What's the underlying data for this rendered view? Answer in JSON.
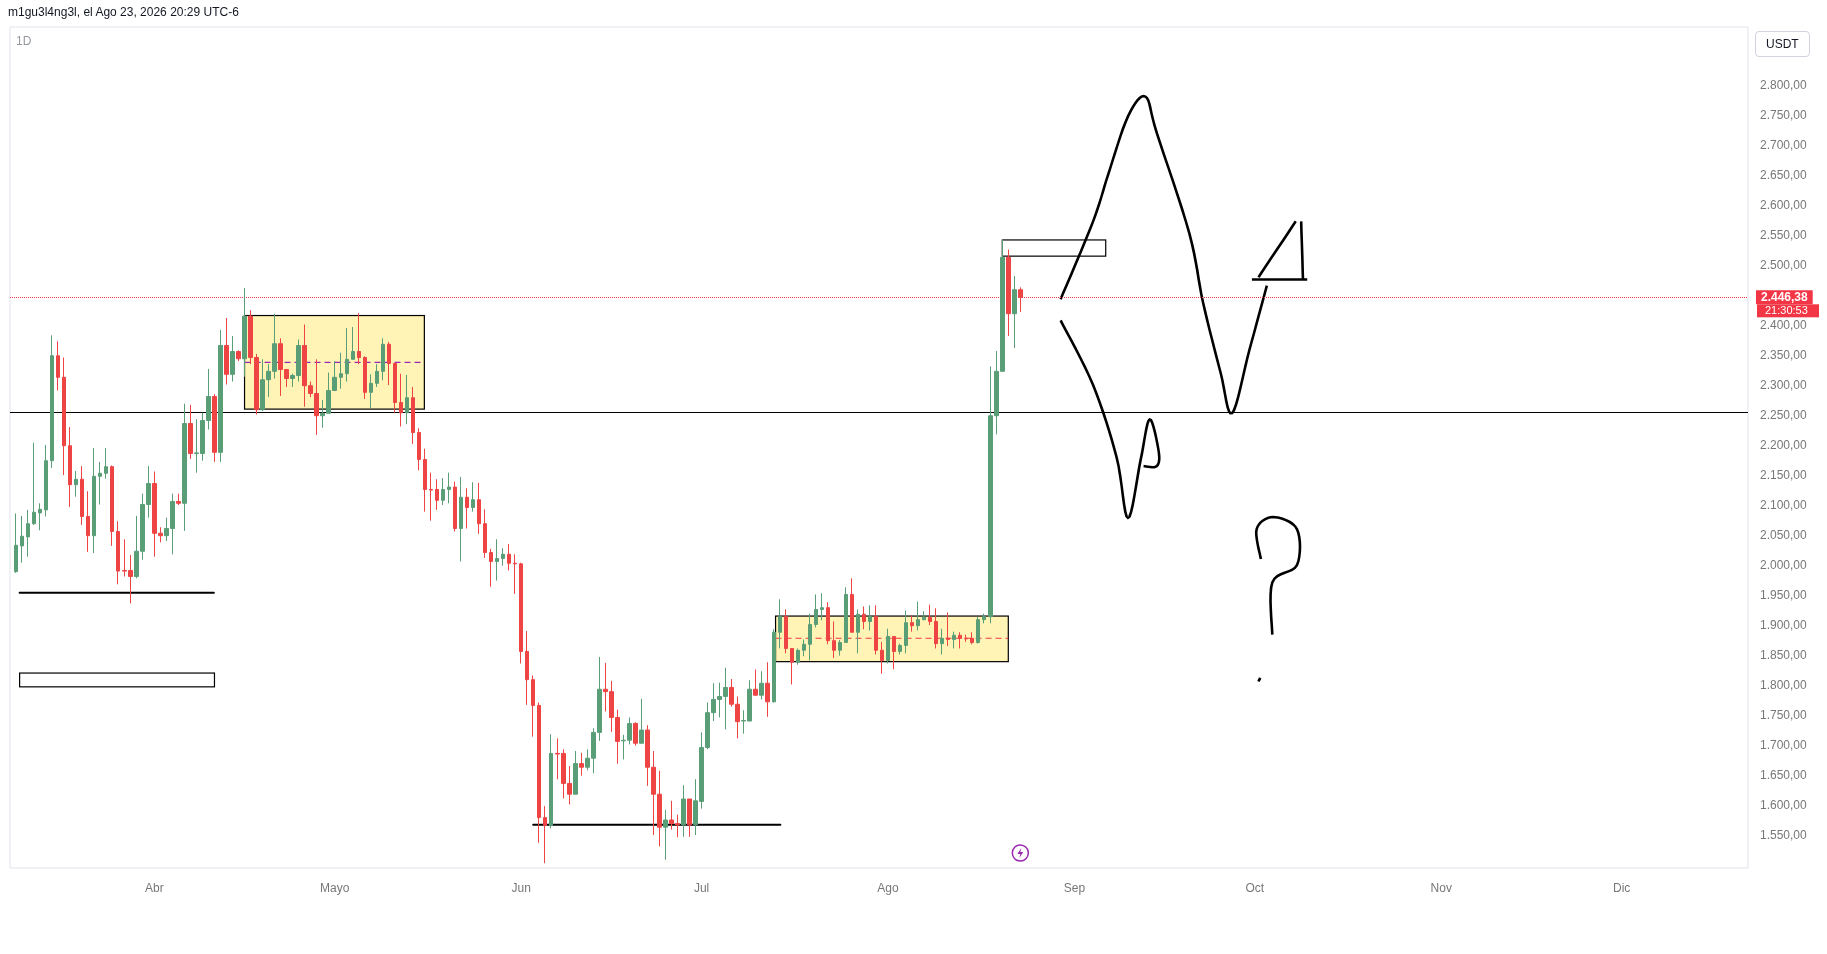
{
  "chart_data": {
    "type": "candlestick",
    "title": "m1gu3l4ng3l, el Ago 23, 2026 20:29 UTC-6",
    "subtitle": "1D",
    "ylabel": "USDT",
    "annotations": [
      "21:30:53"
    ],
    "colors": [
      "#5a9e78",
      "#5a9e78",
      "#5a9e78",
      "#5a9e78",
      "#5a9e78",
      "#5a9e78",
      "#5a9e78",
      "#ef4444",
      "#ef4444",
      "#ef4444",
      "#5a9e78",
      "#ef4444",
      "#ef4444",
      "#5a9e78",
      "#5a9e78",
      "#5a9e78",
      "#ef4444",
      "#ef4444",
      "#ef4444",
      "#ef4444",
      "#5a9e78",
      "#5a9e78",
      "#5a9e78",
      "#ef4444",
      "#ef4444",
      "#5a9e78",
      "#5a9e78",
      "#ef4444",
      "#5a9e78",
      "#ef4444",
      "#5a9e78",
      "#5a9e78",
      "#5a9e78",
      "#ef4444",
      "#5a9e78",
      "#ef4444",
      "#5a9e78",
      "#ef4444",
      "#5a9e78",
      "#ef4444",
      "#ef4444",
      "#5a9e78",
      "#5a9e78",
      "#5a9e78",
      "#ef4444",
      "#ef4444",
      "#5a9e78",
      "#5a9e78",
      "#ef4444",
      "#ef4444",
      "#ef4444",
      "#5a9e78",
      "#5a9e78",
      "#5a9e78",
      "#5a9e78",
      "#5a9e78",
      "#5a9e78",
      "#ef4444",
      "#ef4444",
      "#5a9e78",
      "#5a9e78",
      "#5a9e78",
      "#ef4444",
      "#ef4444",
      "#ef4444",
      "#5a9e78",
      "#ef4444",
      "#ef4444",
      "#ef4444",
      "#ef4444",
      "#ef4444",
      "#5a9e78",
      "#5a9e78",
      "#ef4444",
      "#5a9e78",
      "#ef4444",
      "#5a9e78",
      "#ef4444",
      "#ef4444",
      "#ef4444",
      "#5a9e78",
      "#5a9e78",
      "#ef4444",
      "#ef4444",
      "#ef4444",
      "#ef4444",
      "#ef4444",
      "#ef4444",
      "#ef4444",
      "#5a9e78",
      "#ef4444",
      "#ef4444",
      "#ef4444",
      "#5a9e78",
      "#ef4444",
      "#5a9e78",
      "#5a9e78",
      "#5a9e78",
      "#ef4444",
      "#ef4444",
      "#ef4444",
      "#5a9e78",
      "#5a9e78",
      "#ef4444",
      "#5a9e78",
      "#ef4444",
      "#ef4444",
      "#ef4444",
      "#5a9e78",
      "#ef4444",
      "#ef4444",
      "#5a9e78",
      "#ef4444",
      "#5a9e78",
      "#5a9e78",
      "#5a9e78",
      "#5a9e78",
      "#5a9e78",
      "#5a9e78",
      "#ef4444",
      "#ef4444",
      "#5a9e78",
      "#5a9e78",
      "#ef4444",
      "#5a9e78",
      "#ef4444",
      "#5a9e78",
      "#5a9e78",
      "#ef4444",
      "#ef4444",
      "#5a9e78",
      "#5a9e78",
      "#5a9e78",
      "#5a9e78",
      "#5a9e78",
      "#ef4444",
      "#ef4444",
      "#5a9e78",
      "#5a9e78",
      "#ef4444",
      "#5a9e78",
      "#ef4444",
      "#5a9e78",
      "#ef4444",
      "#ef4444",
      "#5a9e78",
      "#ef4444",
      "#5a9e78",
      "#5a9e78",
      "#ef4444",
      "#5a9e78",
      "#5a9e78",
      "#ef4444",
      "#ef4444",
      "#5a9e78",
      "#ef4444",
      "#5a9e78",
      "#ef4444",
      "#ef4444",
      "#ef4444",
      "#5a9e78",
      "#5a9e78",
      "#5a9e78",
      "#5a9e78",
      "#5a9e78",
      "#ef4444",
      "#5a9e78",
      "#ef4444"
    ],
    "x": [
      "2026-03-09",
      "2026-03-10",
      "2026-03-11",
      "2026-03-12",
      "2026-03-13",
      "2026-03-14",
      "2026-03-15",
      "2026-03-16",
      "2026-03-17",
      "2026-03-18",
      "2026-03-19",
      "2026-03-20",
      "2026-03-21",
      "2026-03-22",
      "2026-03-23",
      "2026-03-24",
      "2026-03-25",
      "2026-03-26",
      "2026-03-27",
      "2026-03-28",
      "2026-03-29",
      "2026-03-30",
      "2026-03-31",
      "2026-04-01",
      "2026-04-02",
      "2026-04-03",
      "2026-04-04",
      "2026-04-05",
      "2026-04-06",
      "2026-04-07",
      "2026-04-08",
      "2026-04-09",
      "2026-04-10",
      "2026-04-11",
      "2026-04-12",
      "2026-04-13",
      "2026-04-14",
      "2026-04-15",
      "2026-04-16",
      "2026-04-17",
      "2026-04-18",
      "2026-04-19",
      "2026-04-20",
      "2026-04-21",
      "2026-04-22",
      "2026-04-23",
      "2026-04-24",
      "2026-04-25",
      "2026-04-26",
      "2026-04-27",
      "2026-04-28",
      "2026-04-29",
      "2026-04-30",
      "2026-05-01",
      "2026-05-02",
      "2026-05-03",
      "2026-05-04",
      "2026-05-05",
      "2026-05-06",
      "2026-05-07",
      "2026-05-08",
      "2026-05-09",
      "2026-05-10",
      "2026-05-11",
      "2026-05-12",
      "2026-05-13",
      "2026-05-14",
      "2026-05-15",
      "2026-05-16",
      "2026-05-17",
      "2026-05-18",
      "2026-05-19",
      "2026-05-20",
      "2026-05-21",
      "2026-05-22",
      "2026-05-23",
      "2026-05-24",
      "2026-05-25",
      "2026-05-26",
      "2026-05-27",
      "2026-05-28",
      "2026-05-29",
      "2026-05-30",
      "2026-05-31",
      "2026-06-01",
      "2026-06-02",
      "2026-06-03",
      "2026-06-04",
      "2026-06-05",
      "2026-06-06",
      "2026-06-07",
      "2026-06-08",
      "2026-06-09",
      "2026-06-10",
      "2026-06-11",
      "2026-06-12",
      "2026-06-13",
      "2026-06-14",
      "2026-06-15",
      "2026-06-16",
      "2026-06-17",
      "2026-06-18",
      "2026-06-19",
      "2026-06-20",
      "2026-06-21",
      "2026-06-22",
      "2026-06-23",
      "2026-06-24",
      "2026-06-25",
      "2026-06-26",
      "2026-06-27",
      "2026-06-28",
      "2026-06-29",
      "2026-06-30",
      "2026-07-01",
      "2026-07-02",
      "2026-07-03",
      "2026-07-04",
      "2026-07-05",
      "2026-07-06",
      "2026-07-07",
      "2026-07-08",
      "2026-07-09",
      "2026-07-10",
      "2026-07-11",
      "2026-07-12",
      "2026-07-13",
      "2026-07-14",
      "2026-07-15",
      "2026-07-16",
      "2026-07-17",
      "2026-07-18",
      "2026-07-19",
      "2026-07-20",
      "2026-07-21",
      "2026-07-22",
      "2026-07-23",
      "2026-07-24",
      "2026-07-25",
      "2026-07-26",
      "2026-07-27",
      "2026-07-28",
      "2026-07-29",
      "2026-07-30",
      "2026-07-31",
      "2026-08-01",
      "2026-08-02",
      "2026-08-03",
      "2026-08-04",
      "2026-08-05",
      "2026-08-06",
      "2026-08-07",
      "2026-08-08",
      "2026-08-09",
      "2026-08-10",
      "2026-08-11",
      "2026-08-12",
      "2026-08-13",
      "2026-08-14",
      "2026-08-15",
      "2026-08-16",
      "2026-08-17",
      "2026-08-18",
      "2026-08-19",
      "2026-08-20",
      "2026-08-21",
      "2026-08-22",
      "2026-08-23"
    ],
    "ohlc": [
      [
        1989,
        2086,
        1987,
        2033
      ],
      [
        2032,
        2082,
        2004,
        2048
      ],
      [
        2047,
        2092,
        2014,
        2069
      ],
      [
        2069,
        2204,
        2067,
        2088
      ],
      [
        2087,
        2103,
        2058,
        2093
      ],
      [
        2092,
        2200,
        2081,
        2174
      ],
      [
        2174,
        2383,
        2162,
        2349
      ],
      [
        2349,
        2373,
        2291,
        2313
      ],
      [
        2313,
        2346,
        2150,
        2199
      ],
      [
        2199,
        2230,
        2097,
        2134
      ],
      [
        2134,
        2157,
        2114,
        2143
      ],
      [
        2143,
        2165,
        2067,
        2081
      ],
      [
        2081,
        2123,
        2022,
        2049
      ],
      [
        2049,
        2195,
        2020,
        2148
      ],
      [
        2148,
        2172,
        2101,
        2153
      ],
      [
        2153,
        2195,
        2144,
        2164
      ],
      [
        2164,
        2166,
        2032,
        2056
      ],
      [
        2056,
        2073,
        1968,
        1990
      ],
      [
        1991,
        2043,
        1981,
        1990
      ],
      [
        1991,
        2017,
        1936,
        1981
      ],
      [
        1981,
        2082,
        1978,
        2023
      ],
      [
        2023,
        2119,
        2009,
        2101
      ],
      [
        2101,
        2165,
        2079,
        2136
      ],
      [
        2136,
        2156,
        2014,
        2053
      ],
      [
        2053,
        2063,
        2038,
        2049
      ],
      [
        2049,
        2079,
        2040,
        2061
      ],
      [
        2061,
        2119,
        2018,
        2106
      ],
      [
        2106,
        2119,
        2100,
        2103
      ],
      [
        2103,
        2269,
        2057,
        2236
      ],
      [
        2236,
        2267,
        2177,
        2186
      ],
      [
        2186,
        2243,
        2154,
        2187
      ],
      [
        2186,
        2254,
        2174,
        2241
      ],
      [
        2241,
        2327,
        2226,
        2281
      ],
      [
        2281,
        2285,
        2172,
        2188
      ],
      [
        2188,
        2392,
        2172,
        2366
      ],
      [
        2366,
        2412,
        2301,
        2318
      ],
      [
        2318,
        2382,
        2306,
        2356
      ],
      [
        2356,
        2358,
        2340,
        2344
      ],
      [
        2344,
        2462,
        2314,
        2415
      ],
      [
        2415,
        2425,
        2335,
        2346
      ],
      [
        2346,
        2352,
        2251,
        2259
      ],
      [
        2259,
        2343,
        2257,
        2309
      ],
      [
        2309,
        2335,
        2280,
        2323
      ],
      [
        2323,
        2419,
        2311,
        2369
      ],
      [
        2369,
        2378,
        2282,
        2326
      ],
      [
        2326,
        2327,
        2297,
        2311
      ],
      [
        2311,
        2319,
        2297,
        2316
      ],
      [
        2316,
        2376,
        2306,
        2366
      ],
      [
        2366,
        2401,
        2264,
        2299
      ],
      [
        2299,
        2306,
        2280,
        2286
      ],
      [
        2286,
        2343,
        2217,
        2249
      ],
      [
        2249,
        2275,
        2229,
        2253
      ],
      [
        2253,
        2321,
        2253,
        2291
      ],
      [
        2291,
        2340,
        2290,
        2313
      ],
      [
        2313,
        2354,
        2294,
        2319
      ],
      [
        2319,
        2395,
        2306,
        2343
      ],
      [
        2343,
        2397,
        2343,
        2356
      ],
      [
        2356,
        2420,
        2335,
        2346
      ],
      [
        2346,
        2348,
        2277,
        2288
      ],
      [
        2288,
        2318,
        2262,
        2303
      ],
      [
        2303,
        2335,
        2297,
        2323
      ],
      [
        2323,
        2378,
        2308,
        2368
      ],
      [
        2368,
        2372,
        2300,
        2336
      ],
      [
        2336,
        2336,
        2254,
        2271
      ],
      [
        2271,
        2319,
        2231,
        2254
      ],
      [
        2254,
        2317,
        2235,
        2279
      ],
      [
        2279,
        2297,
        2202,
        2221
      ],
      [
        2221,
        2228,
        2158,
        2176
      ],
      [
        2176,
        2194,
        2089,
        2126
      ],
      [
        2126,
        2154,
        2074,
        2125
      ],
      [
        2126,
        2143,
        2092,
        2108
      ],
      [
        2108,
        2145,
        2100,
        2126
      ],
      [
        2126,
        2154,
        2103,
        2130
      ],
      [
        2130,
        2139,
        2056,
        2061
      ],
      [
        2061,
        2147,
        2006,
        2113
      ],
      [
        2113,
        2128,
        2061,
        2096
      ],
      [
        2096,
        2138,
        2089,
        2109
      ],
      [
        2109,
        2137,
        2052,
        2069
      ],
      [
        2069,
        2093,
        2012,
        2021
      ],
      [
        2021,
        2027,
        1964,
        2006
      ],
      [
        2006,
        2043,
        1974,
        2011
      ],
      [
        2011,
        2028,
        1999,
        2018
      ],
      [
        2018,
        2035,
        1991,
        2003
      ],
      [
        2003,
        2018,
        1952,
        2002
      ],
      [
        2002,
        2004,
        1836,
        1856
      ],
      [
        1856,
        1890,
        1767,
        1809
      ],
      [
        1809,
        1816,
        1714,
        1766
      ],
      [
        1766,
        1771,
        1537,
        1579
      ],
      [
        1579,
        1598,
        1503,
        1566
      ],
      [
        1566,
        1718,
        1561,
        1686
      ],
      [
        1686,
        1711,
        1643,
        1685
      ],
      [
        1686,
        1693,
        1611,
        1636
      ],
      [
        1636,
        1665,
        1601,
        1618
      ],
      [
        1618,
        1690,
        1618,
        1669
      ],
      [
        1669,
        1687,
        1649,
        1663
      ],
      [
        1663,
        1693,
        1658,
        1678
      ],
      [
        1678,
        1728,
        1653,
        1721
      ],
      [
        1721,
        1847,
        1707,
        1793
      ],
      [
        1793,
        1837,
        1756,
        1789
      ],
      [
        1789,
        1807,
        1722,
        1746
      ],
      [
        1746,
        1759,
        1669,
        1706
      ],
      [
        1707,
        1717,
        1676,
        1708
      ],
      [
        1708,
        1746,
        1701,
        1736
      ],
      [
        1736,
        1738,
        1699,
        1703
      ],
      [
        1703,
        1777,
        1703,
        1725
      ],
      [
        1725,
        1733,
        1632,
        1663
      ],
      [
        1663,
        1690,
        1550,
        1618
      ],
      [
        1618,
        1657,
        1531,
        1563
      ],
      [
        1563,
        1592,
        1509,
        1575
      ],
      [
        1575,
        1607,
        1559,
        1569
      ],
      [
        1569,
        1584,
        1546,
        1567
      ],
      [
        1567,
        1633,
        1547,
        1610
      ],
      [
        1610,
        1610,
        1547,
        1567
      ],
      [
        1567,
        1643,
        1550,
        1607
      ],
      [
        1606,
        1721,
        1594,
        1696
      ],
      [
        1696,
        1771,
        1693,
        1754
      ],
      [
        1754,
        1803,
        1740,
        1776
      ],
      [
        1776,
        1804,
        1746,
        1781
      ],
      [
        1781,
        1829,
        1726,
        1796
      ],
      [
        1796,
        1810,
        1764,
        1768
      ],
      [
        1768,
        1781,
        1711,
        1739
      ],
      [
        1740,
        1758,
        1719,
        1741
      ],
      [
        1740,
        1808,
        1740,
        1793
      ],
      [
        1793,
        1826,
        1783,
        1783
      ],
      [
        1783,
        1823,
        1776,
        1803
      ],
      [
        1803,
        1838,
        1747,
        1772
      ],
      [
        1772,
        1893,
        1771,
        1888
      ],
      [
        1888,
        1943,
        1861,
        1914
      ],
      [
        1914,
        1926,
        1853,
        1861
      ],
      [
        1861,
        1861,
        1801,
        1838
      ],
      [
        1838,
        1861,
        1834,
        1858
      ],
      [
        1858,
        1876,
        1848,
        1868
      ],
      [
        1868,
        1919,
        1841,
        1901
      ],
      [
        1901,
        1951,
        1896,
        1926
      ],
      [
        1926,
        1953,
        1908,
        1929
      ],
      [
        1929,
        1938,
        1868,
        1874
      ],
      [
        1874,
        1906,
        1845,
        1858
      ],
      [
        1858,
        1875,
        1849,
        1871
      ],
      [
        1871,
        1963,
        1871,
        1951
      ],
      [
        1951,
        1978,
        1888,
        1888
      ],
      [
        1888,
        1926,
        1853,
        1918
      ],
      [
        1918,
        1931,
        1893,
        1906
      ],
      [
        1906,
        1933,
        1891,
        1914
      ],
      [
        1914,
        1933,
        1851,
        1858
      ],
      [
        1858,
        1872,
        1819,
        1841
      ],
      [
        1841,
        1894,
        1836,
        1881
      ],
      [
        1881,
        1881,
        1826,
        1856
      ],
      [
        1856,
        1869,
        1851,
        1866
      ],
      [
        1866,
        1924,
        1853,
        1904
      ],
      [
        1904,
        1916,
        1889,
        1899
      ],
      [
        1899,
        1939,
        1891,
        1909
      ],
      [
        1909,
        1923,
        1908,
        1913
      ],
      [
        1913,
        1934,
        1900,
        1906
      ],
      [
        1906,
        1928,
        1861,
        1869
      ],
      [
        1869,
        1894,
        1851,
        1878
      ],
      [
        1878,
        1921,
        1865,
        1876
      ],
      [
        1876,
        1889,
        1861,
        1883
      ],
      [
        1883,
        1888,
        1861,
        1878
      ],
      [
        1878,
        1884,
        1872,
        1877
      ],
      [
        1878,
        1888,
        1868,
        1871
      ],
      [
        1871,
        1914,
        1869,
        1909
      ],
      [
        1909,
        1919,
        1903,
        1914
      ],
      [
        1914,
        2331,
        1903,
        2249
      ],
      [
        2249,
        2357,
        2218,
        2323
      ],
      [
        2323,
        2543,
        2323,
        2513
      ],
      [
        2513,
        2526,
        2382,
        2419
      ],
      [
        2419,
        2482,
        2362,
        2459
      ],
      [
        2459,
        2463,
        2422,
        2446.38
      ]
    ],
    "xlim": [
      "2026-03-08",
      "2026-12-22"
    ],
    "xticks": [
      {
        "value": "2026-04-01",
        "label": "Abr"
      },
      {
        "value": "2026-05-01",
        "label": "Mayo"
      },
      {
        "value": "2026-06-01",
        "label": "Jun"
      },
      {
        "value": "2026-07-01",
        "label": "Jul"
      },
      {
        "value": "2026-08-01",
        "label": "Ago"
      },
      {
        "value": "2026-09-01",
        "label": "Sep"
      },
      {
        "value": "2026-10-01",
        "label": "Oct"
      },
      {
        "value": "2026-11-01",
        "label": "Nov"
      },
      {
        "value": "2026-12-01",
        "label": "Dic"
      }
    ],
    "ylim": [
      1495,
      2897
    ],
    "yticks": [
      {
        "value": 1550,
        "label": "1.550,00"
      },
      {
        "value": 1600,
        "label": "1.600,00"
      },
      {
        "value": 1650,
        "label": "1.650,00"
      },
      {
        "value": 1700,
        "label": "1.700,00"
      },
      {
        "value": 1750,
        "label": "1.750,00"
      },
      {
        "value": 1800,
        "label": "1.800,00"
      },
      {
        "value": 1850,
        "label": "1.850,00"
      },
      {
        "value": 1900,
        "label": "1.900,00"
      },
      {
        "value": 1950,
        "label": "1.950,00"
      },
      {
        "value": 2000,
        "label": "2.000,00"
      },
      {
        "value": 2050,
        "label": "2.050,00"
      },
      {
        "value": 2100,
        "label": "2.100,00"
      },
      {
        "value": 2150,
        "label": "2.150,00"
      },
      {
        "value": 2200,
        "label": "2.200,00"
      },
      {
        "value": 2250,
        "label": "2.250,00"
      },
      {
        "value": 2300,
        "label": "2.300,00"
      },
      {
        "value": 2350,
        "label": "2.350,00"
      },
      {
        "value": 2400,
        "label": "2.400,00"
      },
      {
        "value": 2500,
        "label": "2.500,00"
      },
      {
        "value": 2550,
        "label": "2.550,00"
      },
      {
        "value": 2600,
        "label": "2.600,00"
      },
      {
        "value": 2650,
        "label": "2.650,00"
      },
      {
        "value": 2700,
        "label": "2.700,00"
      },
      {
        "value": 2750,
        "label": "2.750,00"
      },
      {
        "value": 2800,
        "label": "2.800,00"
      }
    ],
    "ref_lines": [
      {
        "axis": "y",
        "value": 2446.38,
        "label": "2.446,38",
        "color": "#f23645",
        "line_style": "dotted"
      },
      {
        "axis": "y",
        "value": 2255,
        "label": null,
        "color": "#000000",
        "line_style": "solid"
      }
    ],
    "grid": false
  }
}
